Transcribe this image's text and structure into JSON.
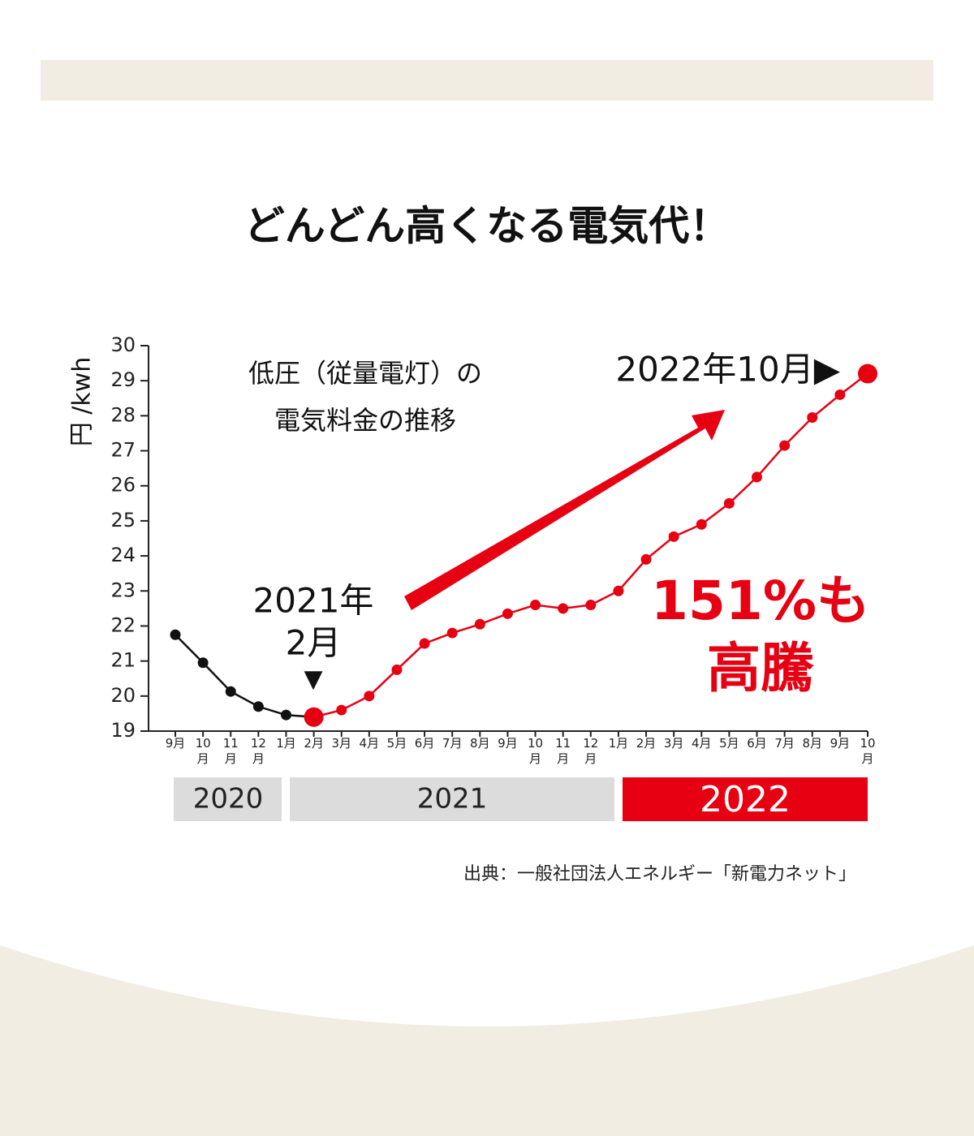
{
  "chart_data": {
    "type": "line",
    "title": "どんどん高くなる電気代！",
    "y_label": "円 /kwh",
    "subtitle": [
      "低圧（従量電灯）の",
      "電気料金の推移"
    ],
    "annotations": {
      "end": "2022年10月▶",
      "start": [
        "2021年",
        "2月",
        "▼"
      ],
      "rise": [
        "151%も",
        "高騰"
      ]
    },
    "source": "出典：一般社団法人エネルギー「新電力ネット」",
    "years": [
      "2020",
      "2021",
      "2022"
    ],
    "categories": [
      "9月",
      "10月",
      "11月",
      "12月",
      "1月",
      "2月",
      "3月",
      "4月",
      "5月",
      "6月",
      "7月",
      "8月",
      "9月",
      "10月",
      "11月",
      "12月",
      "1月",
      "2月",
      "3月",
      "4月",
      "5月",
      "6月",
      "7月",
      "8月",
      "9月",
      "10月"
    ],
    "series": [
      {
        "color": "#111111",
        "values": [
          21.75,
          20.95,
          20.13,
          19.7,
          19.46,
          null,
          null,
          null,
          null,
          null,
          null,
          null,
          null,
          null,
          null,
          null,
          null,
          null,
          null,
          null,
          null,
          null,
          null,
          null,
          null,
          null
        ]
      },
      {
        "color": "#e60012",
        "values": [
          null,
          null,
          null,
          null,
          null,
          19.4,
          19.6,
          20.0,
          20.75,
          21.5,
          21.8,
          22.05,
          22.35,
          22.6,
          22.5,
          22.6,
          23.0,
          23.9,
          24.55,
          24.9,
          25.5,
          26.25,
          27.15,
          27.95,
          28.6,
          29.2
        ]
      }
    ],
    "ylim": [
      19,
      30
    ],
    "yticks": [
      19,
      20,
      21,
      22,
      23,
      24,
      25,
      26,
      27,
      28,
      29,
      30
    ]
  }
}
